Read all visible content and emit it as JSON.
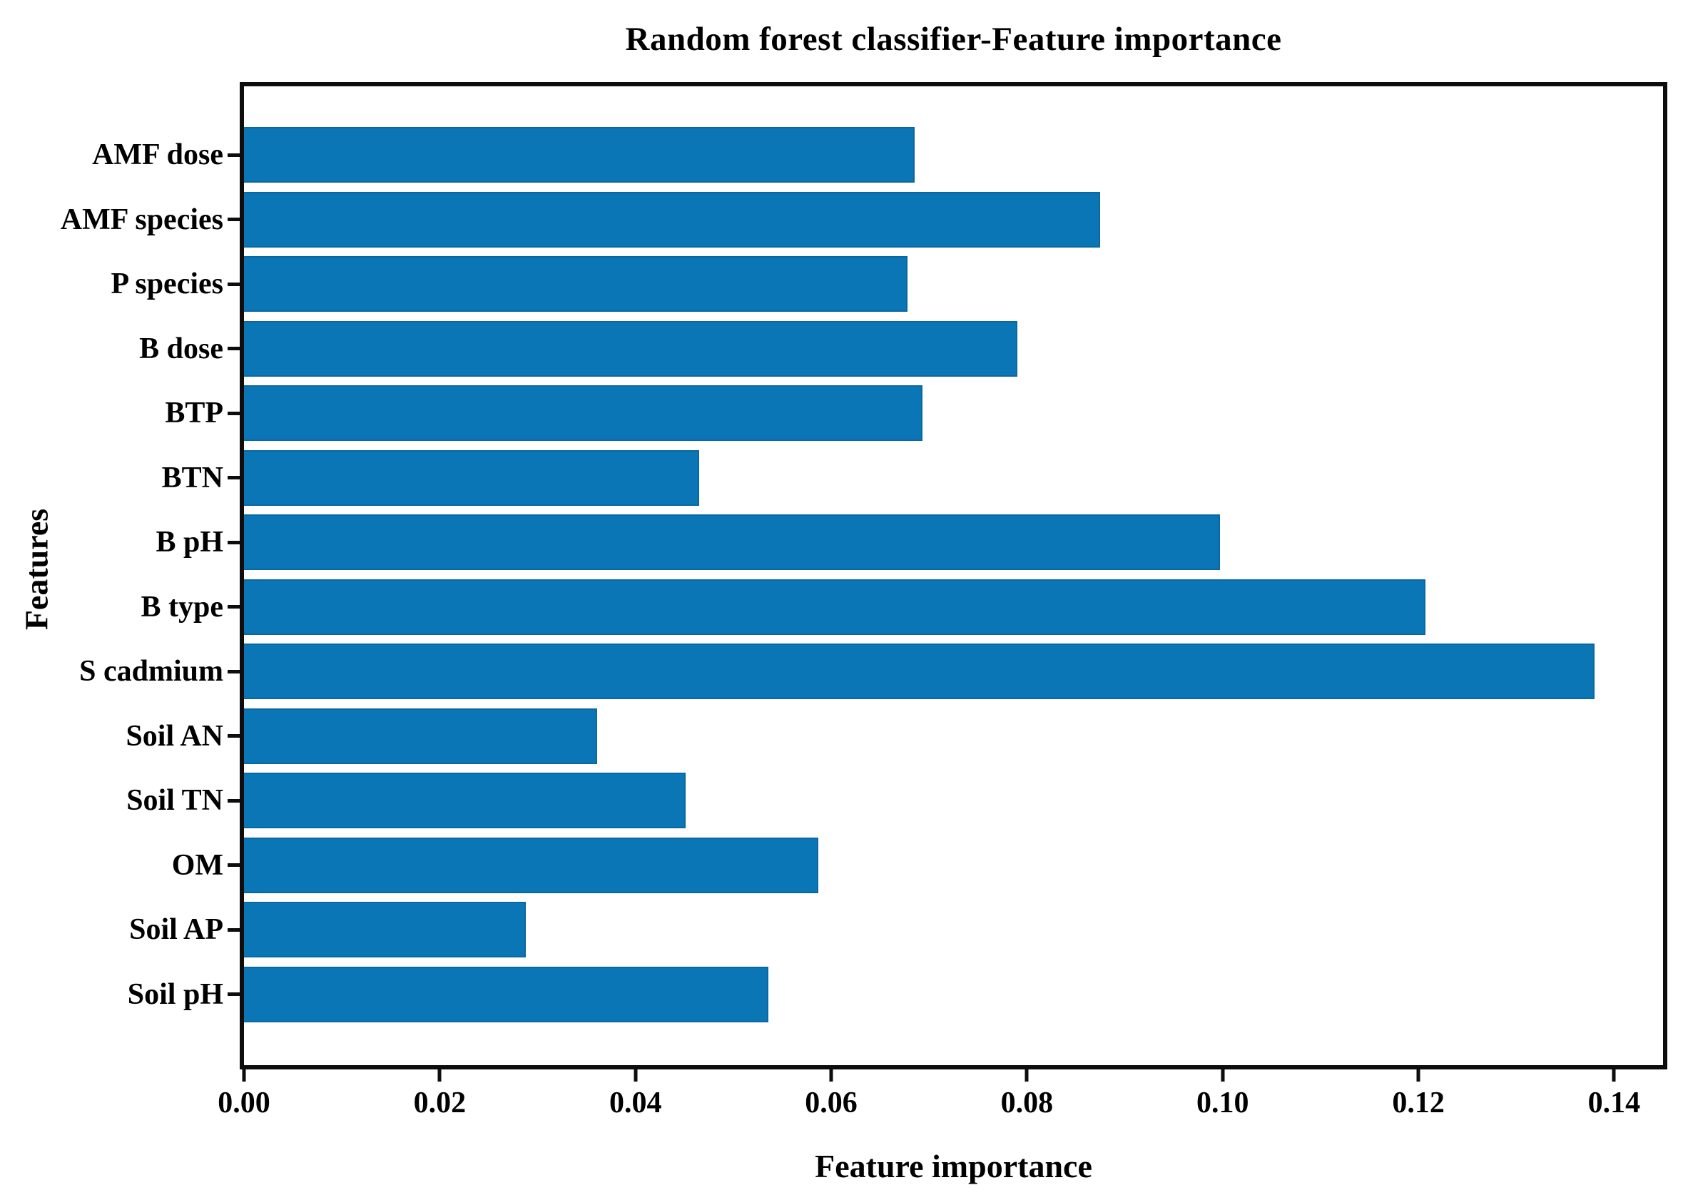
{
  "chart_data": {
    "type": "bar",
    "orientation": "horizontal",
    "title": "Random forest classifier-Feature importance",
    "xlabel": "Feature importance",
    "ylabel": "Features",
    "categories": [
      "AMF dose",
      "AMF species",
      "P species",
      "B dose",
      "BTP",
      "BTN",
      "B pH",
      "B type",
      "S cadmium",
      "Soil AN",
      "Soil TN",
      "OM",
      "Soil AP",
      "Soil pH"
    ],
    "values": [
      0.0685,
      0.0875,
      0.0678,
      0.079,
      0.0693,
      0.0465,
      0.0997,
      0.1207,
      0.138,
      0.0361,
      0.0451,
      0.0587,
      0.0288,
      0.0536
    ],
    "xlim": [
      0,
      0.145
    ],
    "xticks": [
      0.0,
      0.02,
      0.04,
      0.06,
      0.08,
      0.1,
      0.12,
      0.14
    ],
    "xtick_labels": [
      "0.00",
      "0.02",
      "0.04",
      "0.06",
      "0.08",
      "0.10",
      "0.12",
      "0.14"
    ],
    "bar_color": "#0b76b5",
    "axis_color": "#0d0d0d",
    "grid": false,
    "legend_position": "none"
  }
}
